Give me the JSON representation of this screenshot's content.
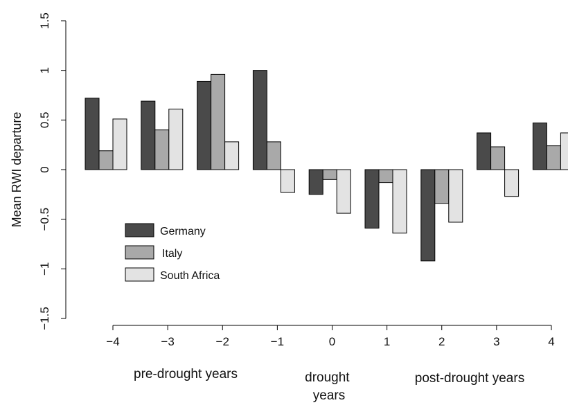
{
  "chart_data": {
    "type": "bar",
    "title": "",
    "xlabel": "",
    "ylabel": "Mean RWI departure",
    "ylim": [
      -1.5,
      1.5
    ],
    "yticks": [
      "1.5",
      "1",
      "0.5",
      "0",
      "-0.5",
      "-1",
      "-1.5"
    ],
    "ytick_values": [
      1.5,
      1,
      0.5,
      0,
      -0.5,
      -1,
      -1.5
    ],
    "categories": [
      "−4",
      "−3",
      "−2",
      "−1",
      "0",
      "1",
      "2",
      "3",
      "4"
    ],
    "series": [
      {
        "name": "Germany",
        "color": "#4a4a4a",
        "values": [
          0.72,
          0.69,
          0.89,
          1.0,
          -0.25,
          -0.59,
          -0.92,
          0.37,
          0.47
        ]
      },
      {
        "name": "Italy",
        "color": "#a9a9a9",
        "values": [
          0.19,
          0.4,
          0.96,
          0.28,
          -0.1,
          -0.13,
          -0.34,
          0.23,
          0.24
        ]
      },
      {
        "name": "South Africa",
        "color": "#e3e3e3",
        "values": [
          0.51,
          0.61,
          0.28,
          -0.23,
          -0.44,
          -0.64,
          -0.53,
          -0.27,
          0.37
        ]
      }
    ],
    "grid": false,
    "legend_position": "lower-left",
    "group_labels": [
      "pre-drought years",
      "drought years",
      "post-drought years"
    ]
  }
}
